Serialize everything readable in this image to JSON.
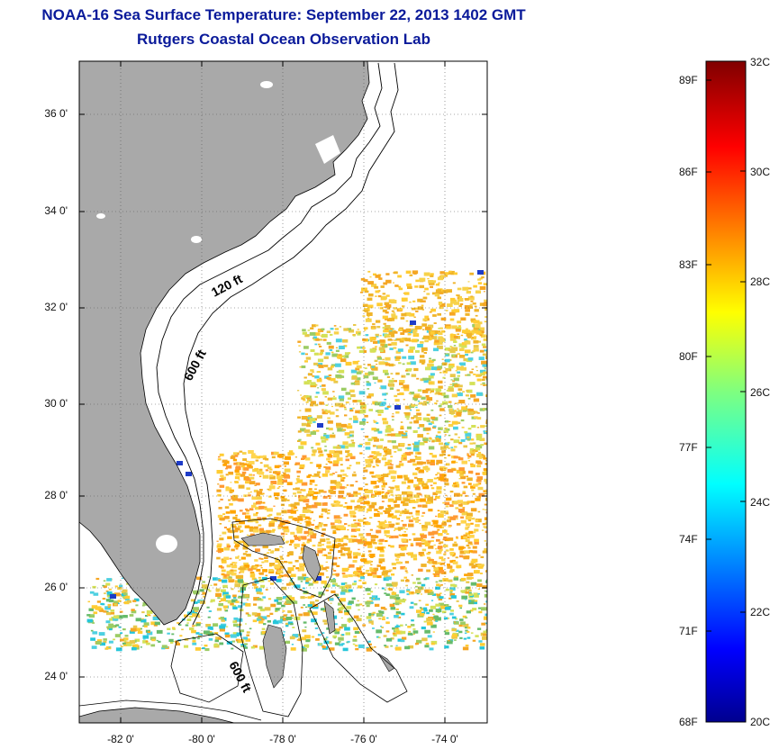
{
  "title": {
    "line1": "NOAA-16 Sea Surface Temperature:  September 22, 2013 1402 GMT",
    "line2": "Rutgers Coastal Ocean Observation Lab"
  },
  "map": {
    "lon_range": [
      -83,
      -73
    ],
    "lat_range": [
      23,
      37.3
    ],
    "lat_ticks": [
      "36 0'",
      "34 0'",
      "32 0'",
      "30 0'",
      "28 0'",
      "26 0'",
      "24 0'"
    ],
    "lon_ticks": [
      "-82 0'",
      "-80 0'",
      "-78 0'",
      "-76 0'",
      "-74 0'"
    ],
    "contour_labels": [
      "120 ft",
      "600 ft",
      "600 ft"
    ],
    "land_color": "#a9a9a9",
    "grid": true
  },
  "colorbar": {
    "f_labels": [
      "89F",
      "86F",
      "83F",
      "80F",
      "77F",
      "74F",
      "71F",
      "68F"
    ],
    "c_labels": [
      "32C",
      "30C",
      "28C",
      "26C",
      "24C",
      "22C",
      "20C"
    ],
    "range_c": [
      20,
      32
    ]
  }
}
